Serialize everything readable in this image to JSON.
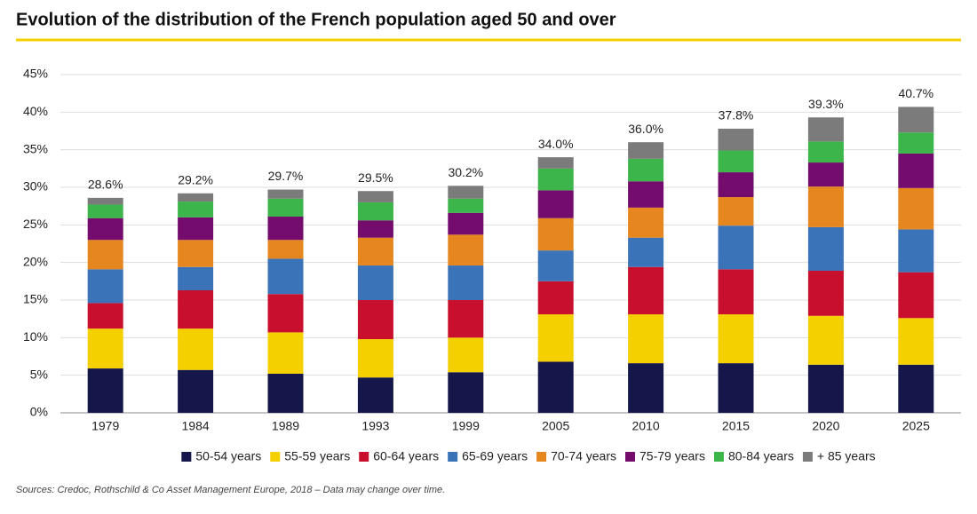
{
  "chart_data": {
    "type": "stacked-bar",
    "title": "Evolution of the distribution of the French population aged 50 and over",
    "source": "Sources: Credoc, Rothschild & Co Asset Management Europe, 2018 – Data may change over time.",
    "categories": [
      "1979",
      "1984",
      "1989",
      "1993",
      "1999",
      "2005",
      "2010",
      "2015",
      "2020",
      "2025"
    ],
    "series": [
      {
        "name": "50-54 years",
        "color": "#15174b",
        "values": [
          5.9,
          5.7,
          5.2,
          4.7,
          5.4,
          6.8,
          6.6,
          6.6,
          6.4,
          6.4
        ]
      },
      {
        "name": "55-59 years",
        "color": "#f5d000",
        "values": [
          5.3,
          5.5,
          5.5,
          5.1,
          4.6,
          6.3,
          6.5,
          6.5,
          6.5,
          6.2
        ]
      },
      {
        "name": "60-64 years",
        "color": "#c8102e",
        "values": [
          3.4,
          5.1,
          5.1,
          5.2,
          5.0,
          4.4,
          6.3,
          6.0,
          6.0,
          6.1
        ]
      },
      {
        "name": "65-69 years",
        "color": "#3b73b9",
        "values": [
          4.5,
          3.1,
          4.7,
          4.6,
          4.6,
          4.1,
          3.9,
          5.8,
          5.8,
          5.7
        ]
      },
      {
        "name": "70-74 years",
        "color": "#e5861f",
        "values": [
          3.9,
          3.6,
          2.5,
          3.7,
          4.1,
          4.3,
          4.0,
          3.8,
          5.4,
          5.5
        ]
      },
      {
        "name": "75-79 years",
        "color": "#730c6c",
        "values": [
          2.9,
          3.0,
          3.1,
          2.3,
          2.9,
          3.7,
          3.5,
          3.3,
          3.2,
          4.6
        ]
      },
      {
        "name": "80-84 years",
        "color": "#3cb54a",
        "values": [
          1.8,
          2.1,
          2.4,
          2.4,
          1.9,
          2.9,
          3.0,
          2.9,
          2.8,
          2.8
        ]
      },
      {
        "name": "+ 85 years",
        "color": "#7b7b7b",
        "values": [
          0.9,
          1.1,
          1.2,
          1.5,
          1.7,
          1.5,
          2.2,
          2.9,
          3.2,
          3.4
        ]
      }
    ],
    "totals": {
      "values": [
        28.6,
        29.2,
        29.7,
        29.5,
        30.2,
        34.0,
        36.0,
        37.8,
        39.3,
        40.7
      ],
      "value_labels": [
        "28.6%",
        "29.2%",
        "29.7%",
        "29.5%",
        "30.2%",
        "34.0%",
        "36.0%",
        "37.8%",
        "39.3%",
        "40.7%"
      ]
    },
    "ylim": [
      0,
      45
    ],
    "yticks": [
      {
        "value": 0,
        "label": "0%"
      },
      {
        "value": 5,
        "label": "5%"
      },
      {
        "value": 10,
        "label": "10%"
      },
      {
        "value": 15,
        "label": "15%"
      },
      {
        "value": 20,
        "label": "20%"
      },
      {
        "value": 25,
        "label": "25%"
      },
      {
        "value": 30,
        "label": "30%"
      },
      {
        "value": 35,
        "label": "35%"
      },
      {
        "value": 40,
        "label": "40%"
      },
      {
        "value": 45,
        "label": "45%"
      }
    ],
    "grid": true,
    "legend": "bottom"
  }
}
